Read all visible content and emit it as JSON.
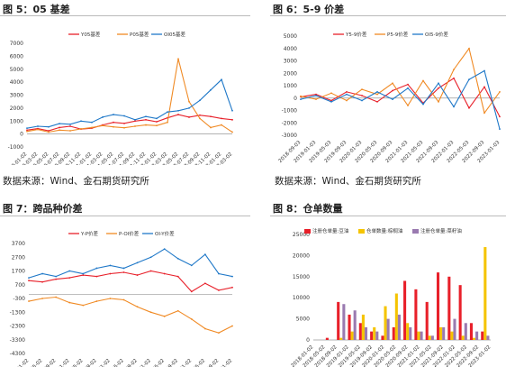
{
  "panels": [
    {
      "title": "图 5：05 基差"
    },
    {
      "title": "图 6：5-9 价差"
    },
    {
      "title": "图 7：跨品种价差"
    },
    {
      "title": "图 8：仓单数量"
    }
  ],
  "source_top_left": "数据来源：Wind、金石期货研究所",
  "source_top_right": "数据来源：Wind、金石期货研究所",
  "chart_data": [
    {
      "type": "line",
      "title": "",
      "yticks": [
        -1000,
        0,
        1000,
        2000,
        3000,
        4000,
        5000,
        6000,
        7000
      ],
      "ylim": [
        -1000,
        7000
      ],
      "xticks": [
        "2020-01-02",
        "2020-03-02",
        "2020-05-02",
        "2020-07-02",
        "2020-09-02",
        "2020-11-02",
        "2021-01-02",
        "2021-03-02",
        "2021-05-02",
        "2021-07-02",
        "2021-09-02",
        "2021-11-02",
        "2022-01-02",
        "2022-03-02",
        "2022-05-02",
        "2022-07-02",
        "2022-09-02",
        "2022-11-02",
        "2023-01-02",
        "2023-03-02"
      ],
      "legend_position": "top",
      "series": [
        {
          "name": "Y05基差",
          "color": "#e8202a",
          "values": [
            300,
            420,
            250,
            500,
            600,
            380,
            450,
            700,
            900,
            820,
            1000,
            1100,
            950,
            1250,
            1500,
            1300,
            1450,
            1350,
            1200,
            1100
          ]
        },
        {
          "name": "P05基差",
          "color": "#f08a24",
          "values": [
            200,
            350,
            150,
            300,
            250,
            400,
            500,
            650,
            550,
            480,
            600,
            700,
            650,
            900,
            5800,
            2500,
            1200,
            500,
            700,
            150
          ]
        },
        {
          "name": "OI05基差",
          "color": "#1f78c8",
          "values": [
            450,
            600,
            550,
            800,
            750,
            1000,
            900,
            1300,
            1500,
            1400,
            1100,
            1350,
            1200,
            1700,
            1800,
            2000,
            2600,
            3400,
            4200,
            1800
          ]
        }
      ]
    },
    {
      "type": "line",
      "title": "",
      "yticks": [
        -3000,
        -2000,
        -1000,
        0,
        1000,
        2000,
        3000,
        4000,
        5000
      ],
      "ylim": [
        -3000,
        5000
      ],
      "xticks": [
        "2018-09-03",
        "2019-01-03",
        "2019-05-03",
        "2019-09-03",
        "2020-01-03",
        "2020-05-03",
        "2020-09-03",
        "2021-01-03",
        "2021-05-03",
        "2021-09-03",
        "2022-01-03",
        "2022-05-03",
        "2022-09-03",
        "2023-01-03"
      ],
      "legend_position": "top",
      "series": [
        {
          "name": "Y5-9价差",
          "color": "#e8202a",
          "values": [
            100,
            300,
            -200,
            500,
            200,
            -300,
            600,
            1100,
            -400,
            800,
            1600,
            -800,
            900,
            -1500
          ]
        },
        {
          "name": "P5-9价差",
          "color": "#f08a24",
          "values": [
            150,
            -100,
            400,
            -200,
            700,
            300,
            1200,
            -600,
            1400,
            -300,
            2300,
            4000,
            -1200,
            500
          ]
        },
        {
          "name": "OI5-9价差",
          "color": "#1f78c8",
          "values": [
            -100,
            200,
            -300,
            300,
            -200,
            500,
            -100,
            800,
            -500,
            1200,
            -700,
            1500,
            2200,
            -2500
          ]
        }
      ]
    },
    {
      "type": "line",
      "title": "",
      "yticks": [
        -4300,
        -3300,
        -2300,
        -1300,
        -300,
        700,
        1700,
        2700,
        3700
      ],
      "ylim": [
        -4300,
        3700
      ],
      "xticks": [
        "2018-01-02",
        "2018-05-02",
        "2018-09-02",
        "2019-01-02",
        "2019-05-02",
        "2019-09-02",
        "2020-01-02",
        "2020-05-02",
        "2020-09-02",
        "2021-01-02",
        "2021-05-02",
        "2021-09-02",
        "2022-01-02",
        "2022-05-02",
        "2022-09-02",
        "2023-01-02"
      ],
      "legend_position": "top",
      "series": [
        {
          "name": "Y-P价差",
          "color": "#e8202a",
          "values": [
            1000,
            900,
            1100,
            1200,
            1400,
            1300,
            1500,
            1600,
            1400,
            1700,
            1500,
            1300,
            200,
            800,
            300,
            500
          ]
        },
        {
          "name": "P-OI价差",
          "color": "#f08a24",
          "values": [
            -500,
            -300,
            -200,
            -600,
            -800,
            -500,
            -300,
            -400,
            -900,
            -1300,
            -1600,
            -1200,
            -1800,
            -2500,
            -2800,
            -2300
          ]
        },
        {
          "name": "OI-Y价差",
          "color": "#1f78c8",
          "values": [
            1200,
            1500,
            1300,
            1700,
            1500,
            1900,
            2100,
            1900,
            2300,
            2700,
            3300,
            2600,
            2100,
            2900,
            1500,
            1300
          ]
        }
      ]
    },
    {
      "type": "bar",
      "title": "",
      "yticks": [
        0,
        5000,
        10000,
        15000,
        20000,
        25000
      ],
      "ylim": [
        0,
        25000
      ],
      "xticks": [
        "2018-01-02",
        "2018-05-02",
        "2018-09-02",
        "2019-01-02",
        "2019-05-02",
        "2019-09-02",
        "2020-01-02",
        "2020-05-02",
        "2020-09-02",
        "2021-01-02",
        "2021-05-02",
        "2021-09-02",
        "2022-01-02",
        "2022-05-02",
        "2022-09-02",
        "2023-01-02"
      ],
      "legend_position": "top",
      "series": [
        {
          "name": "注册仓单量:豆油",
          "color": "#e8202a",
          "values": [
            0,
            500,
            9000,
            6000,
            4000,
            2000,
            1000,
            3000,
            14000,
            12000,
            9000,
            16000,
            15000,
            13000,
            4000,
            2000
          ]
        },
        {
          "name": "仓单数量:棕榈油",
          "color": "#f5c400",
          "values": [
            0,
            0,
            500,
            2000,
            6000,
            3000,
            8000,
            11000,
            4000,
            2000,
            1000,
            3000,
            2000,
            1000,
            500,
            22000
          ]
        },
        {
          "name": "注册仓单量:菜籽油",
          "color": "#9a7ab0",
          "values": [
            0,
            0,
            8500,
            7000,
            3000,
            2000,
            5000,
            6000,
            3000,
            2000,
            1000,
            3000,
            5000,
            4000,
            2000,
            1000
          ]
        }
      ]
    }
  ]
}
